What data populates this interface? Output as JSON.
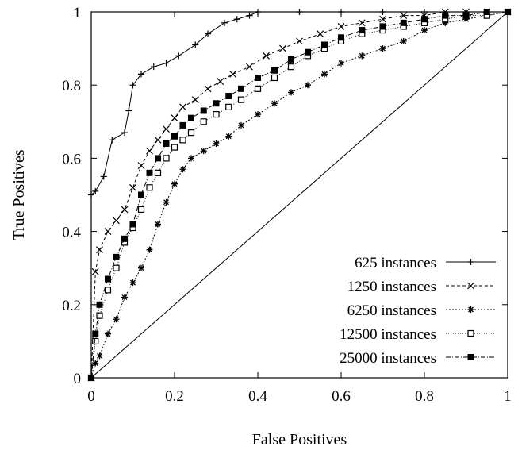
{
  "chart_data": {
    "type": "line",
    "title": "",
    "xlabel": "False Positives",
    "ylabel": "True Positives",
    "xlim": [
      0,
      1
    ],
    "ylim": [
      0,
      1
    ],
    "xticks": [
      "0",
      "0.2",
      "0.4",
      "0.6",
      "0.8",
      "1"
    ],
    "yticks": [
      "0",
      "0.2",
      "0.4",
      "0.6",
      "0.8",
      "1"
    ],
    "grid": false,
    "legend_position": "bottom-right",
    "reference_line": {
      "x": [
        0,
        1
      ],
      "y": [
        0,
        1
      ]
    },
    "series": [
      {
        "name": "625 instances",
        "marker": "plus",
        "dash": "solid",
        "x": [
          0.0,
          0.0,
          0.01,
          0.03,
          0.05,
          0.08,
          0.09,
          0.1,
          0.12,
          0.15,
          0.18,
          0.21,
          0.25,
          0.28,
          0.32,
          0.35,
          0.38,
          0.4,
          0.5,
          0.6,
          0.7,
          0.8,
          0.9,
          1.0
        ],
        "y": [
          0.0,
          0.5,
          0.51,
          0.55,
          0.65,
          0.67,
          0.73,
          0.8,
          0.83,
          0.85,
          0.86,
          0.88,
          0.91,
          0.94,
          0.97,
          0.98,
          0.99,
          1.0,
          1.0,
          1.0,
          1.0,
          1.0,
          1.0,
          1.0
        ]
      },
      {
        "name": "1250 instances",
        "marker": "x",
        "dash": "4,3",
        "x": [
          0.0,
          0.01,
          0.02,
          0.04,
          0.06,
          0.08,
          0.1,
          0.12,
          0.14,
          0.16,
          0.18,
          0.2,
          0.22,
          0.25,
          0.28,
          0.31,
          0.34,
          0.38,
          0.42,
          0.46,
          0.5,
          0.55,
          0.6,
          0.65,
          0.7,
          0.75,
          0.8,
          0.85,
          0.9,
          0.95,
          1.0
        ],
        "y": [
          0.0,
          0.29,
          0.35,
          0.4,
          0.43,
          0.46,
          0.52,
          0.58,
          0.62,
          0.65,
          0.68,
          0.71,
          0.74,
          0.76,
          0.79,
          0.81,
          0.83,
          0.85,
          0.88,
          0.9,
          0.92,
          0.94,
          0.96,
          0.97,
          0.98,
          0.99,
          0.99,
          1.0,
          1.0,
          1.0,
          1.0
        ]
      },
      {
        "name": "6250 instances",
        "marker": "star",
        "dash": "2,2",
        "x": [
          0.0,
          0.01,
          0.02,
          0.04,
          0.06,
          0.08,
          0.1,
          0.12,
          0.14,
          0.16,
          0.18,
          0.2,
          0.22,
          0.24,
          0.27,
          0.3,
          0.33,
          0.36,
          0.4,
          0.44,
          0.48,
          0.52,
          0.56,
          0.6,
          0.65,
          0.7,
          0.75,
          0.8,
          0.85,
          0.9,
          0.95,
          1.0
        ],
        "y": [
          0.0,
          0.04,
          0.06,
          0.12,
          0.16,
          0.22,
          0.26,
          0.3,
          0.35,
          0.42,
          0.48,
          0.53,
          0.57,
          0.6,
          0.62,
          0.64,
          0.66,
          0.69,
          0.72,
          0.75,
          0.78,
          0.8,
          0.83,
          0.86,
          0.88,
          0.9,
          0.92,
          0.95,
          0.97,
          0.98,
          0.99,
          1.0
        ]
      },
      {
        "name": "12500 instances",
        "marker": "square-open",
        "dash": "1,2",
        "x": [
          0.0,
          0.01,
          0.02,
          0.04,
          0.06,
          0.08,
          0.1,
          0.12,
          0.14,
          0.16,
          0.18,
          0.2,
          0.22,
          0.24,
          0.27,
          0.3,
          0.33,
          0.36,
          0.4,
          0.44,
          0.48,
          0.52,
          0.56,
          0.6,
          0.65,
          0.7,
          0.75,
          0.8,
          0.85,
          0.9,
          0.95,
          1.0
        ],
        "y": [
          0.0,
          0.1,
          0.17,
          0.24,
          0.3,
          0.37,
          0.41,
          0.46,
          0.52,
          0.56,
          0.6,
          0.63,
          0.65,
          0.67,
          0.7,
          0.72,
          0.74,
          0.76,
          0.79,
          0.82,
          0.85,
          0.88,
          0.9,
          0.92,
          0.94,
          0.95,
          0.96,
          0.97,
          0.98,
          0.99,
          0.99,
          1.0
        ]
      },
      {
        "name": "25000 instances",
        "marker": "square-filled",
        "dash": "6,2,1,2",
        "x": [
          0.0,
          0.01,
          0.02,
          0.04,
          0.06,
          0.08,
          0.1,
          0.12,
          0.14,
          0.16,
          0.18,
          0.2,
          0.22,
          0.24,
          0.27,
          0.3,
          0.33,
          0.36,
          0.4,
          0.44,
          0.48,
          0.52,
          0.56,
          0.6,
          0.65,
          0.7,
          0.75,
          0.8,
          0.85,
          0.9,
          0.95,
          1.0
        ],
        "y": [
          0.0,
          0.12,
          0.2,
          0.27,
          0.33,
          0.38,
          0.42,
          0.5,
          0.56,
          0.6,
          0.64,
          0.66,
          0.69,
          0.71,
          0.73,
          0.75,
          0.77,
          0.79,
          0.82,
          0.84,
          0.87,
          0.89,
          0.91,
          0.93,
          0.95,
          0.96,
          0.97,
          0.98,
          0.99,
          0.99,
          1.0,
          1.0
        ]
      }
    ]
  }
}
